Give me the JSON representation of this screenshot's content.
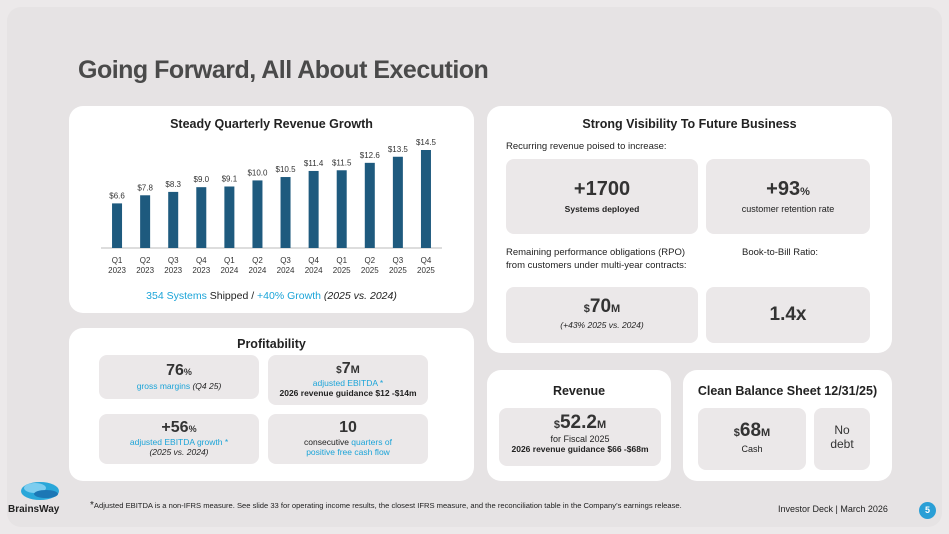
{
  "title": "Going Forward, All About Execution",
  "revenue_growth": {
    "title": "Steady Quarterly Revenue Growth",
    "caption_blue1": "354 Systems",
    "caption_text1": " Shipped / ",
    "caption_blue2": "+40% Growth",
    "caption_italic": " (2025 vs. 2024)"
  },
  "chart_data": {
    "type": "bar",
    "title": "Steady Quarterly Revenue Growth",
    "categories": [
      "Q1 2023",
      "Q2 2023",
      "Q3 2023",
      "Q4 2023",
      "Q1 2024",
      "Q2 2024",
      "Q3 2024",
      "Q4 2024",
      "Q1 2025",
      "Q2 2025",
      "Q3 2025",
      "Q4 2025"
    ],
    "quarters": [
      "Q1",
      "Q2",
      "Q3",
      "Q4",
      "Q1",
      "Q2",
      "Q3",
      "Q4",
      "Q1",
      "Q2",
      "Q3",
      "Q4"
    ],
    "years": [
      "2023",
      "2023",
      "2023",
      "2023",
      "2024",
      "2024",
      "2024",
      "2024",
      "2025",
      "2025",
      "2025",
      "2025"
    ],
    "values": [
      6.6,
      7.8,
      8.3,
      9.0,
      9.1,
      10.0,
      10.5,
      11.4,
      11.5,
      12.6,
      13.5,
      14.5
    ],
    "labels": [
      "$6.6",
      "$7.8",
      "$8.3",
      "$9.0",
      "$9.1",
      "$10.0",
      "$10.5",
      "$11.4",
      "$11.5",
      "$12.6",
      "$13.5",
      "$14.5"
    ],
    "ylim": [
      0,
      14.5
    ],
    "color": "#1e5a7e"
  },
  "profitability": {
    "title": "Profitability",
    "margin_value": "76",
    "margin_unit": "%",
    "margin_label": "gross margins",
    "margin_note": " (Q4 25)",
    "ebitda_prefix": "$",
    "ebitda_value": "7",
    "ebitda_unit": "M",
    "ebitda_label": "adjusted EBITDA *",
    "ebitda_guidance": "2026 revenue guidance $12 -$14m",
    "growth_value": "+56",
    "growth_unit": "%",
    "growth_label": "adjusted EBITDA growth *",
    "growth_note": "(2025 vs. 2024)",
    "quarters_value": "10",
    "quarters_label1": "consecutive ",
    "quarters_label_blue1": "quarters of",
    "quarters_label_blue2": "positive free cash flow"
  },
  "visibility": {
    "title": "Strong Visibility To Future Business",
    "recurring_label": "Recurring revenue poised to increase:",
    "systems_value": "+1700",
    "systems_label": "Systems deployed",
    "retention_value": "+93",
    "retention_unit": "%",
    "retention_label": "customer retention rate",
    "rpo_label1": "Remaining performance obligations (RPO)",
    "rpo_label2": "from customers under multi-year contracts:",
    "btb_label": "Book-to-Bill Ratio:",
    "rpo_prefix": "$",
    "rpo_value": "70",
    "rpo_unit": "M",
    "rpo_note": "(+43% 2025 vs. 2024)",
    "btb_value": "1.4x"
  },
  "revenue": {
    "title": "Revenue",
    "prefix": "$",
    "value": "52.2",
    "unit": "M",
    "label": "for Fiscal 2025",
    "guidance": "2026 revenue guidance $66 -$68m"
  },
  "balance": {
    "title": "Clean Balance Sheet 12/31/25)",
    "cash_prefix": "$",
    "cash_value": "68",
    "cash_unit": "M",
    "cash_label": "Cash",
    "debt_line1": "No",
    "debt_line2": "debt"
  },
  "logo_text": "BrainsWay",
  "footnote_star": "*",
  "footnote": "Adjusted EBITDA is a non-IFRS measure. See slide 33 for operating income results, the closest IFRS measure, and the reconciliation table in the Company’s earnings release.",
  "footer": "Investor Deck | March 2026",
  "page_number": "5"
}
